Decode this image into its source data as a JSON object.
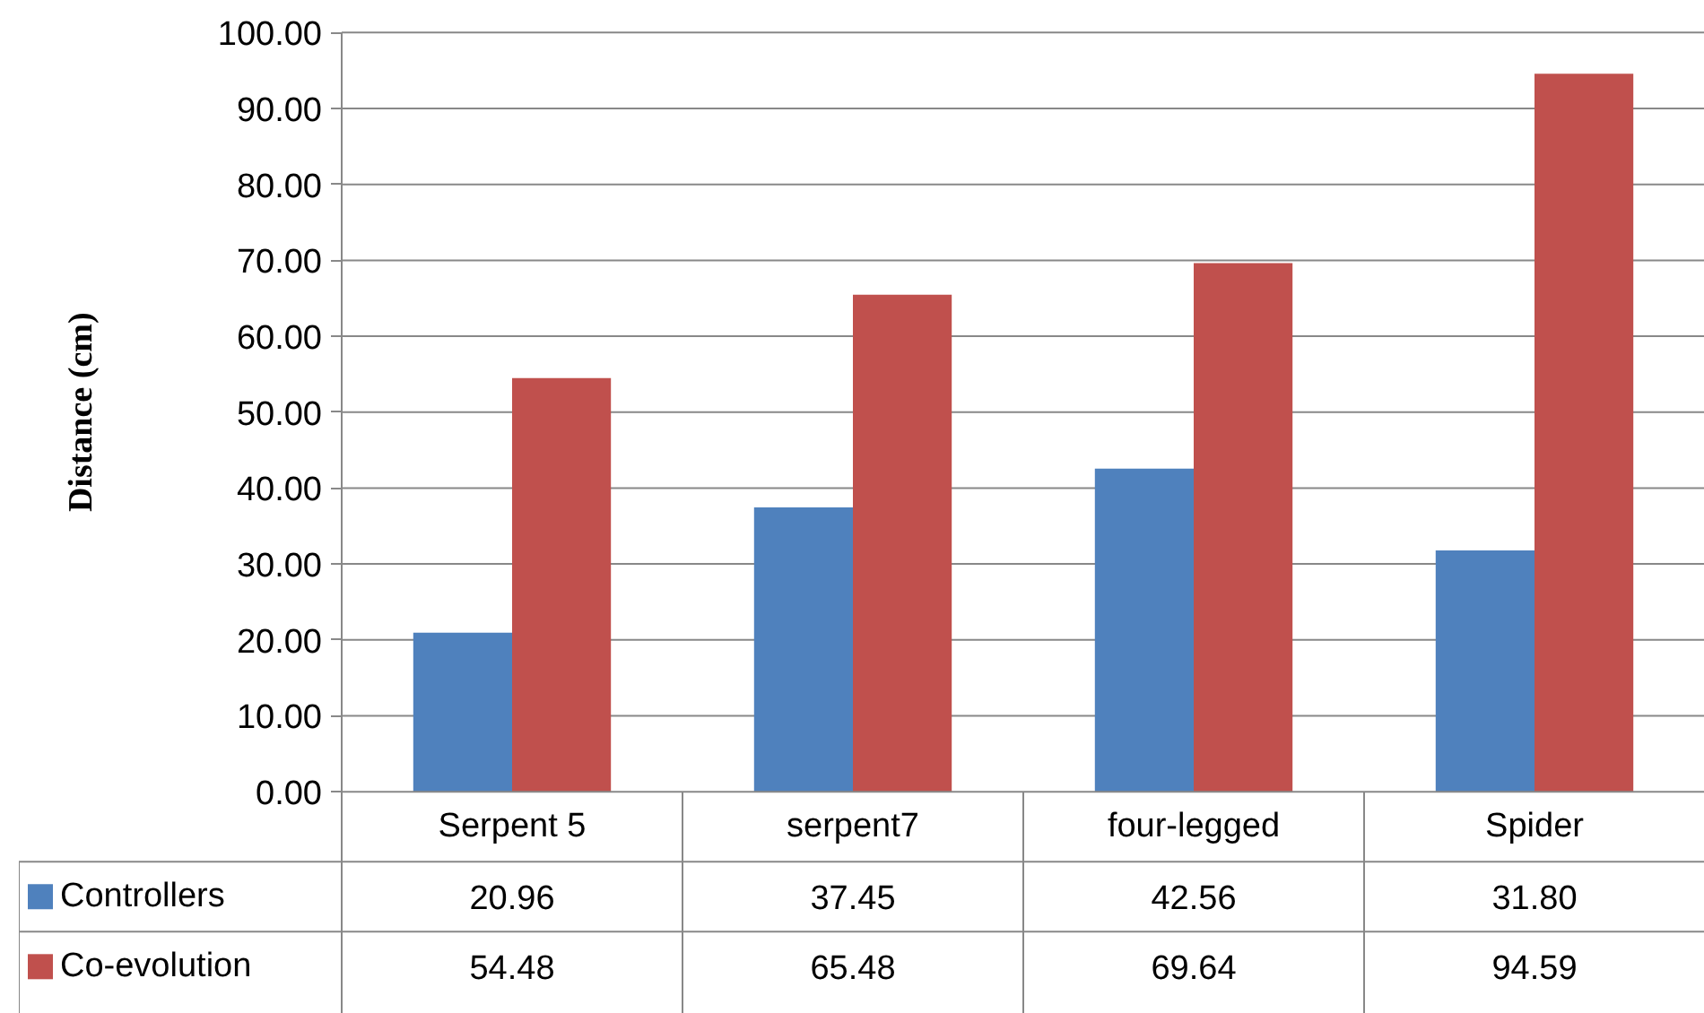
{
  "chart_data": {
    "type": "bar",
    "ylabel": "Distance (cm)",
    "categories": [
      "Serpent 5",
      "serpent7",
      "four-legged",
      "Spider"
    ],
    "series": [
      {
        "name": "Controllers",
        "color": "#4f81bd",
        "values": [
          20.96,
          37.45,
          42.56,
          31.8
        ],
        "value_labels": [
          "20.96",
          "37.45",
          "42.56",
          "31.80"
        ]
      },
      {
        "name": "Co-evolution",
        "color": "#c0504d",
        "values": [
          54.48,
          65.48,
          69.64,
          94.59
        ],
        "value_labels": [
          "54.48",
          "65.48",
          "69.64",
          "94.59"
        ]
      }
    ],
    "ylim": [
      0,
      100
    ],
    "yticks": [
      {
        "value": 0,
        "label": "0.00"
      },
      {
        "value": 10,
        "label": "10.00"
      },
      {
        "value": 20,
        "label": "20.00"
      },
      {
        "value": 30,
        "label": "30.00"
      },
      {
        "value": 40,
        "label": "40.00"
      },
      {
        "value": 50,
        "label": "50.00"
      },
      {
        "value": 60,
        "label": "60.00"
      },
      {
        "value": 70,
        "label": "70.00"
      },
      {
        "value": 80,
        "label": "80.00"
      },
      {
        "value": 90,
        "label": "90.00"
      },
      {
        "value": 100,
        "label": "100.00"
      }
    ],
    "grid": "y",
    "legend": "bottom"
  }
}
